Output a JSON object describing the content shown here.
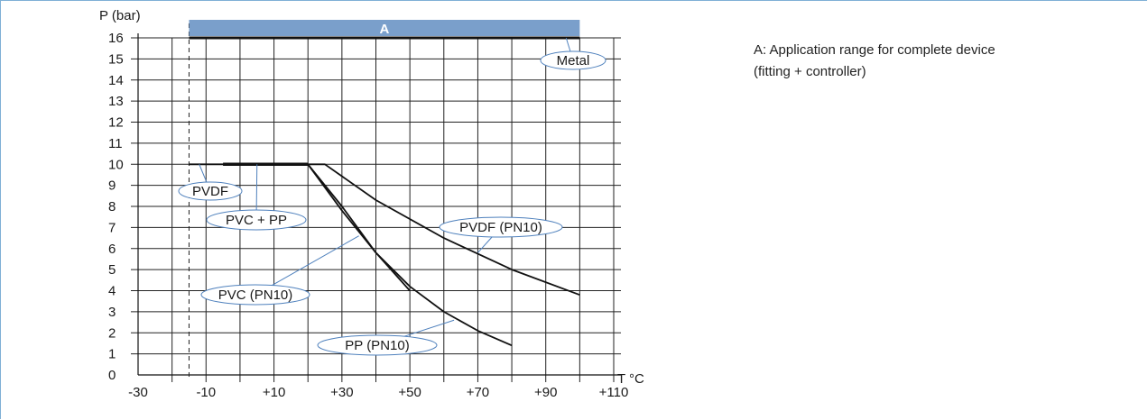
{
  "chart_data": {
    "type": "line",
    "xlabel": "T °C",
    "ylabel": "P (bar)",
    "xlim": [
      -30,
      110
    ],
    "ylim": [
      0,
      16
    ],
    "x_ticks": [
      -30,
      -10,
      10,
      30,
      50,
      70,
      90,
      110
    ],
    "x_tick_labels": [
      "-30",
      "-10",
      "+10",
      "+30",
      "+50",
      "+70",
      "+90",
      "+110"
    ],
    "y_ticks": [
      0,
      1,
      2,
      3,
      4,
      5,
      6,
      7,
      8,
      9,
      10,
      11,
      12,
      13,
      14,
      15,
      16
    ],
    "y_tick_labels": [
      "0",
      "1",
      "2",
      "3",
      "4",
      "5",
      "6",
      "7",
      "8",
      "9",
      "10",
      "11",
      "12",
      "13",
      "14",
      "15",
      "16"
    ],
    "grid": true,
    "grid_x_step": 10,
    "reference_line_x": -15,
    "band": {
      "label": "A",
      "x_range": [
        -15,
        100
      ],
      "color": "#7a9fcb"
    },
    "series": [
      {
        "name": "Metal",
        "x": [
          -15,
          100
        ],
        "y": [
          16,
          16
        ],
        "color": "#111111",
        "width": 3
      },
      {
        "name": "PVDF",
        "x": [
          -15,
          20
        ],
        "y": [
          10,
          10
        ],
        "color": "#111111",
        "width": 1.8
      },
      {
        "name": "PVC + PP",
        "x": [
          -5,
          20
        ],
        "y": [
          10,
          10
        ],
        "color": "#111111",
        "width": 3.5
      },
      {
        "name": "PVDF (PN10)",
        "x": [
          20,
          25,
          40,
          60,
          80,
          100
        ],
        "y": [
          10,
          10,
          8.3,
          6.5,
          5.0,
          3.8
        ],
        "color": "#111111",
        "width": 1.8
      },
      {
        "name": "PVC (PN10)",
        "x": [
          20,
          30,
          40,
          50
        ],
        "y": [
          10,
          8,
          5.8,
          4.0
        ],
        "color": "#111111",
        "width": 1.8
      },
      {
        "name": "PP (PN10)",
        "x": [
          20,
          30,
          40,
          50,
          60,
          70,
          80
        ],
        "y": [
          10,
          7.8,
          5.8,
          4.2,
          3.0,
          2.1,
          1.4
        ],
        "color": "#111111",
        "width": 1.8
      }
    ],
    "annotations": [
      {
        "text": "Metal",
        "anchor_x": 96,
        "anchor_y": 16
      },
      {
        "text": "PVDF",
        "anchor_x": -12,
        "anchor_y": 10
      },
      {
        "text": "PVC + PP",
        "anchor_x": 5,
        "anchor_y": 10
      },
      {
        "text": "PVDF (PN10)",
        "anchor_x": 70,
        "anchor_y": 5.8
      },
      {
        "text": "PVC (PN10)",
        "anchor_x": 35,
        "anchor_y": 6.6
      },
      {
        "text": "PP (PN10)",
        "anchor_x": 63,
        "anchor_y": 2.6
      }
    ]
  },
  "legend_note": {
    "line1": "A: Application range for complete device",
    "line2": "(fitting + controller)"
  }
}
